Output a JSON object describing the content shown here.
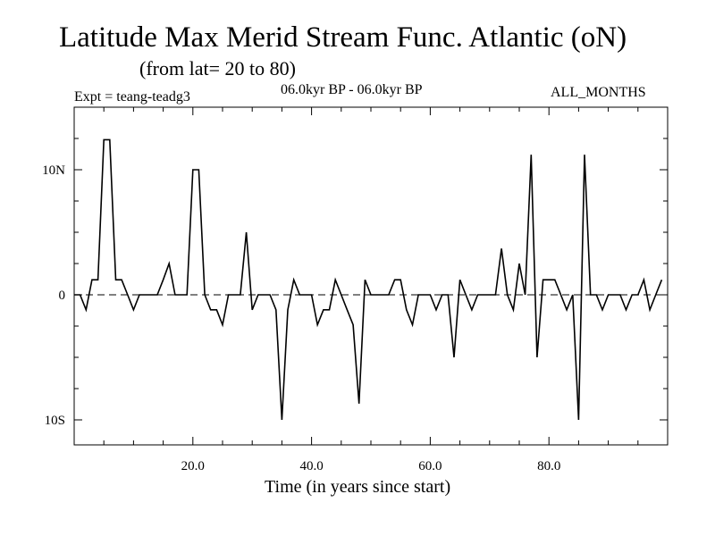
{
  "header": {
    "title": "Latitude Max Merid Stream Func. Atlantic (oN)",
    "subtitle": "(from lat= 20 to 80)",
    "experiment": "Expt = teang-teadg3",
    "period": "06.0kyr BP - 06.0kyr BP",
    "months": "ALL_MONTHS"
  },
  "chart_data": {
    "type": "line",
    "title": "Latitude Max Merid Stream Func. Atlantic (oN)",
    "subtitle": "(from lat= 20 to 80)",
    "xlabel": "Time (in years since start)",
    "ylabel": "",
    "xlim": [
      0,
      100
    ],
    "ylim": [
      -12,
      15
    ],
    "xticks": [
      20,
      40,
      60,
      80
    ],
    "xtick_labels": [
      "20.0",
      "40.0",
      "60.0",
      "80.0"
    ],
    "yticks": [
      -10,
      0,
      10
    ],
    "ytick_labels": [
      "10S",
      "0",
      "10N"
    ],
    "zero_line": "dashed",
    "series": [
      {
        "name": "Latitude Max Merid Stream Func",
        "x": [
          0,
          1,
          2,
          3,
          4,
          5,
          6,
          7,
          8,
          9,
          10,
          11,
          12,
          13,
          14,
          15,
          16,
          17,
          18,
          19,
          20,
          21,
          22,
          23,
          24,
          25,
          26,
          27,
          28,
          29,
          30,
          31,
          32,
          33,
          34,
          35,
          36,
          37,
          38,
          39,
          40,
          41,
          42,
          43,
          44,
          45,
          46,
          47,
          48,
          49,
          50,
          51,
          52,
          53,
          54,
          55,
          56,
          57,
          58,
          59,
          60,
          61,
          62,
          63,
          64,
          65,
          66,
          67,
          68,
          69,
          70,
          71,
          72,
          73,
          74,
          75,
          76,
          77,
          78,
          79,
          80,
          81,
          82,
          83,
          84,
          85,
          86,
          87,
          88,
          89,
          90,
          91,
          92,
          93,
          94,
          95,
          96,
          97,
          98,
          99
        ],
        "y": [
          0,
          0,
          -1.2,
          1.2,
          1.2,
          12.4,
          12.4,
          1.2,
          1.2,
          0,
          -1.2,
          0,
          0,
          0,
          0,
          1.2,
          2.5,
          0,
          0,
          0,
          10,
          10,
          0,
          -1.2,
          -1.2,
          -2.4,
          0,
          0,
          0,
          5,
          -1.2,
          0,
          0,
          0,
          -1.2,
          -10,
          -1.2,
          1.2,
          0,
          0,
          0,
          -2.4,
          -1.2,
          -1.2,
          1.2,
          0,
          -1.2,
          -2.4,
          -8.7,
          1.2,
          0,
          0,
          0,
          0,
          1.2,
          1.2,
          -1.2,
          -2.4,
          0,
          0,
          0,
          -1.2,
          0,
          0,
          -5,
          1.2,
          0,
          -1.2,
          0,
          0,
          0,
          0,
          3.7,
          0,
          -1.2,
          2.5,
          0,
          11.2,
          -5,
          1.2,
          1.2,
          1.2,
          0,
          -1.2,
          0,
          -10,
          11.2,
          0,
          0,
          -1.2,
          0,
          0,
          0,
          -1.2,
          0,
          0,
          1.2,
          -1.2,
          0,
          1.2
        ]
      }
    ]
  }
}
